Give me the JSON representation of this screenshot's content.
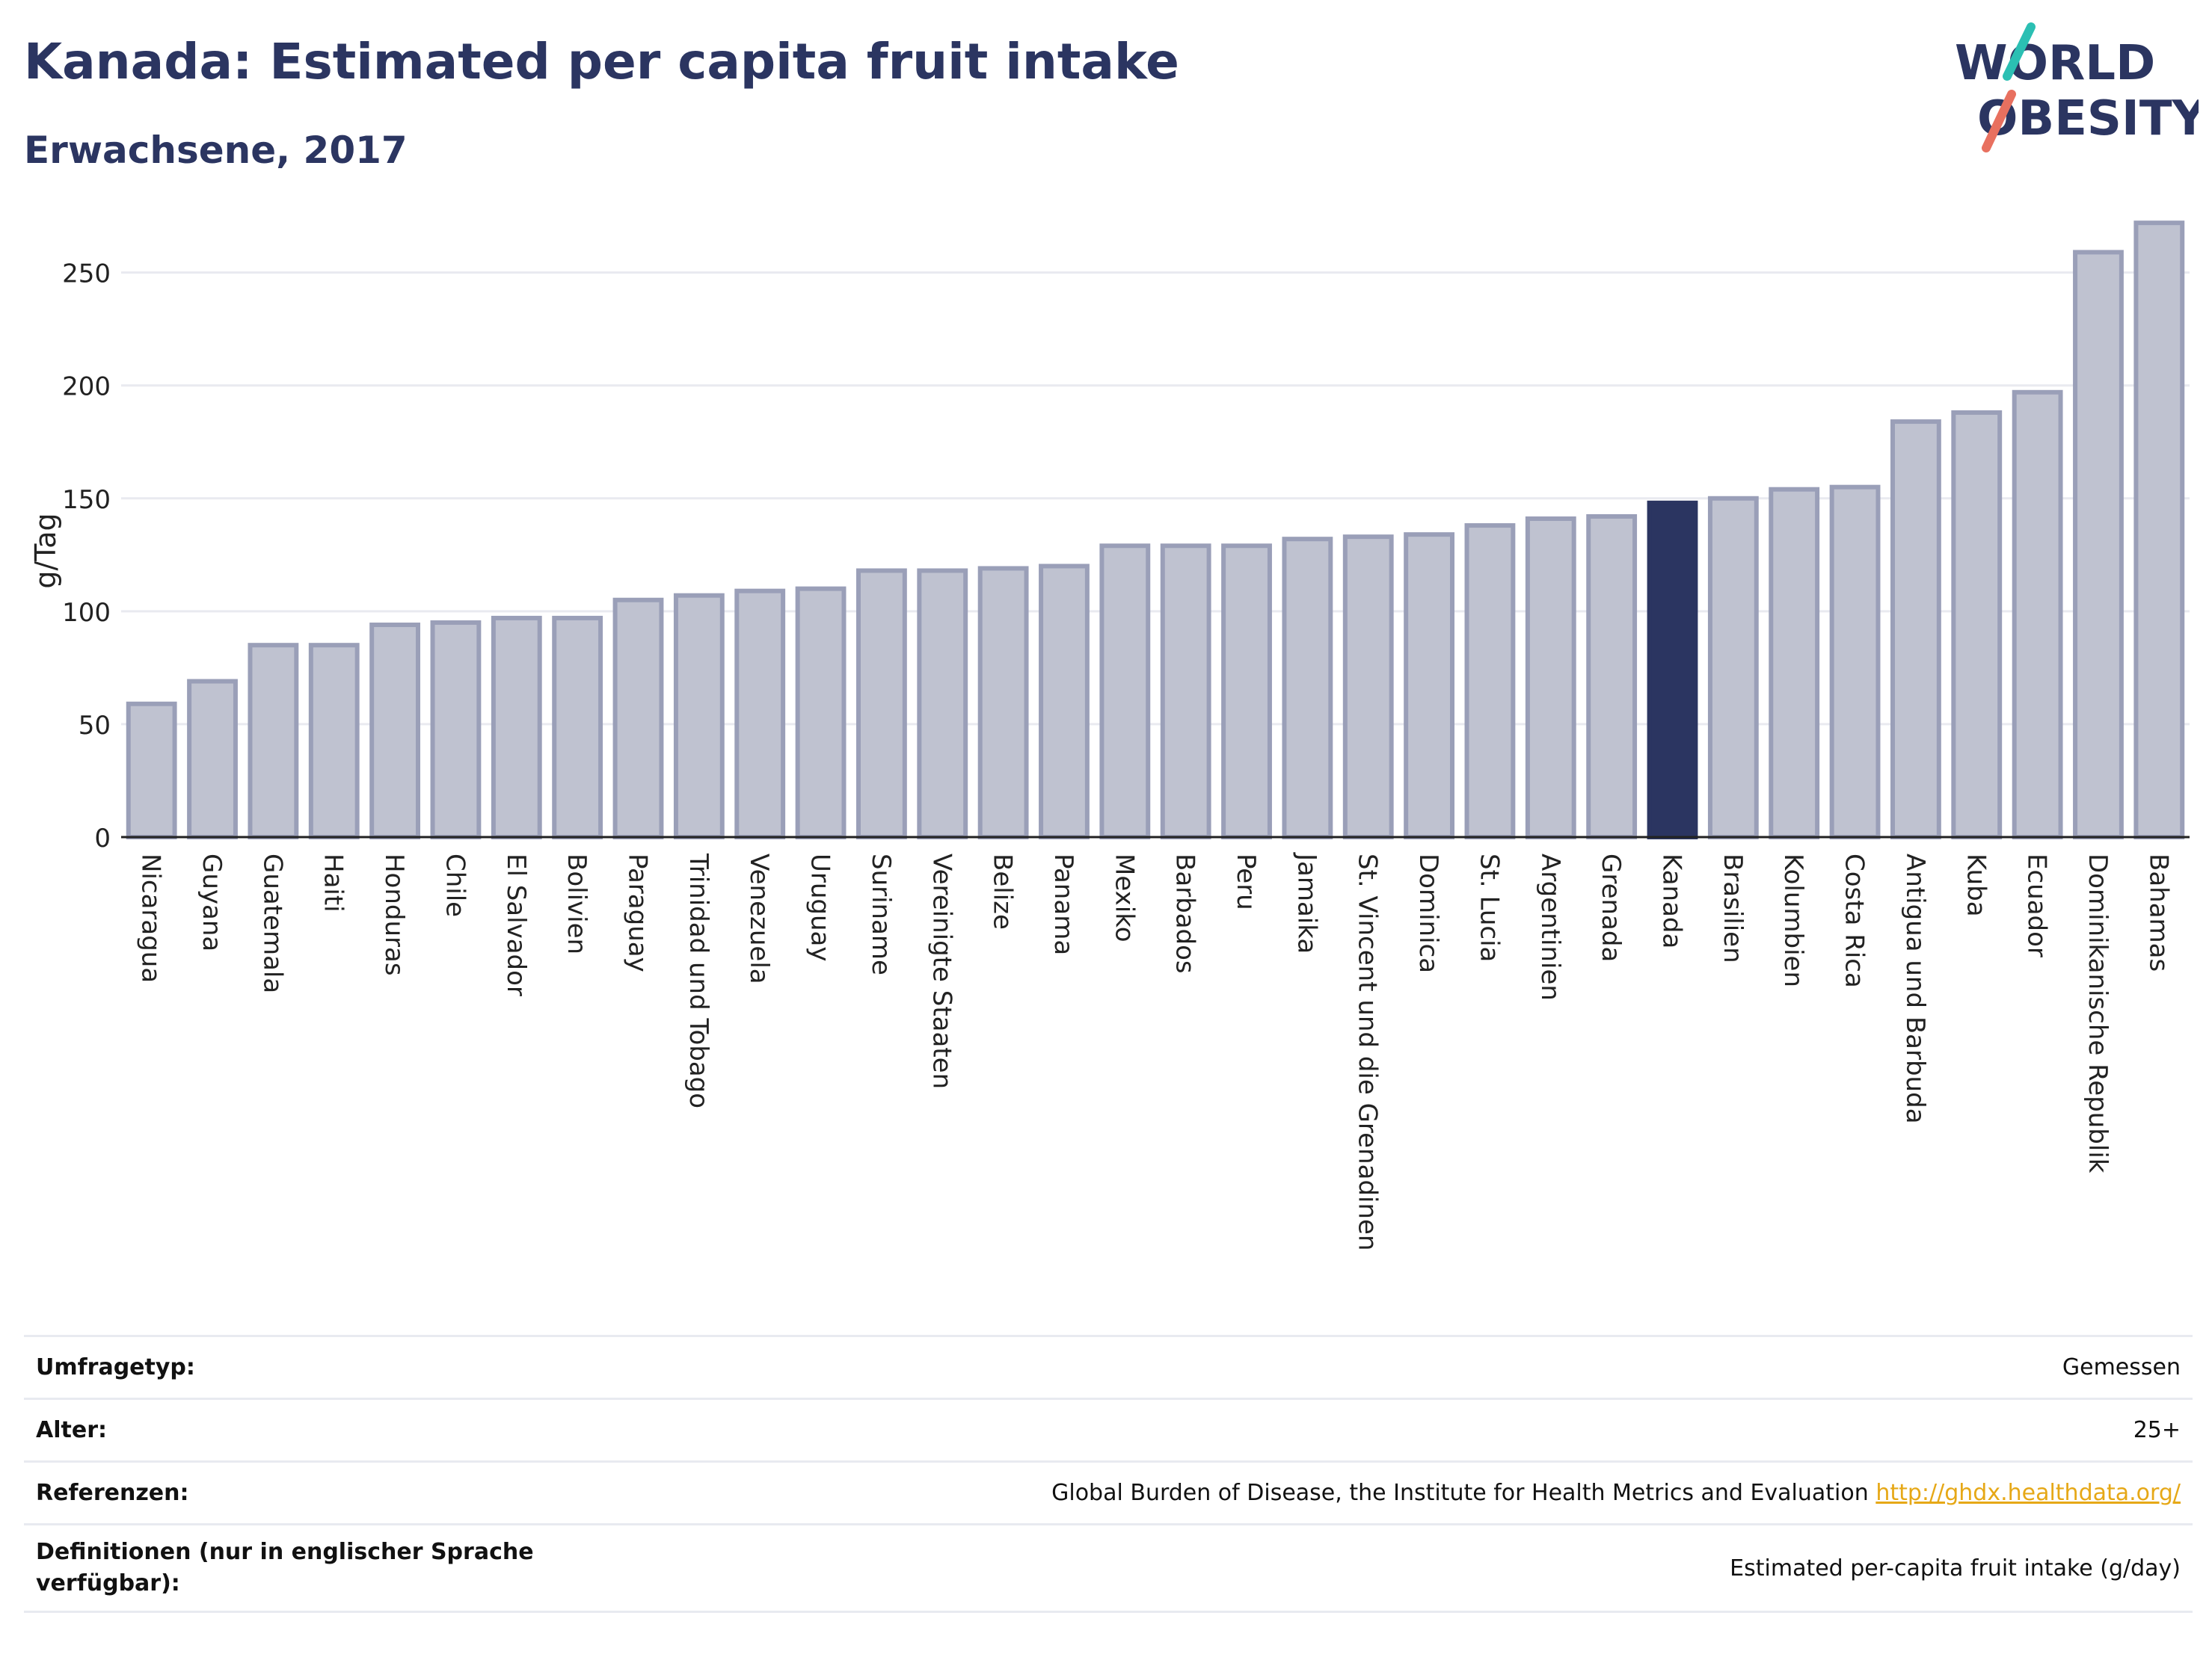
{
  "header": {
    "title": "Kanada: Estimated per capita fruit intake",
    "subtitle": "Erwachsene, 2017"
  },
  "logo": {
    "line1": "WORLD",
    "line2": "OBESITY",
    "accent_teal": "#2bbfb3",
    "accent_coral": "#e8705f"
  },
  "colors": {
    "brand_navy": "#2b3561",
    "bar_fill": "#bfc2d0",
    "bar_edge": "#9a9fb8",
    "highlight": "#2b3561",
    "link": "#e6a817"
  },
  "chart_data": {
    "type": "bar",
    "ylabel": "g/Tag",
    "ylim": [
      0,
      280
    ],
    "yticks": [
      0,
      50,
      100,
      150,
      200,
      250
    ],
    "grid": true,
    "highlight": "Kanada",
    "categories": [
      "Nicaragua",
      "Guyana",
      "Guatemala",
      "Haiti",
      "Honduras",
      "Chile",
      "El Salvador",
      "Bolivien",
      "Paraguay",
      "Trinidad und Tobago",
      "Venezuela",
      "Uruguay",
      "Suriname",
      "Vereinigte Staaten",
      "Belize",
      "Panama",
      "Mexiko",
      "Barbados",
      "Peru",
      "Jamaika",
      "St. Vincent und die Grenadinen",
      "Dominica",
      "St. Lucia",
      "Argentinien",
      "Grenada",
      "Kanada",
      "Brasilien",
      "Kolumbien",
      "Costa Rica",
      "Antigua und Barbuda",
      "Kuba",
      "Ecuador",
      "Dominikanische Republik",
      "Bahamas"
    ],
    "values": [
      59,
      69,
      85,
      85,
      94,
      95,
      97,
      97,
      105,
      107,
      109,
      110,
      118,
      118,
      119,
      120,
      129,
      129,
      129,
      132,
      133,
      134,
      138,
      141,
      142,
      148,
      150,
      154,
      155,
      184,
      188,
      197,
      259,
      272
    ]
  },
  "info_table": [
    {
      "label": "Umfragetyp:",
      "value": "Gemessen"
    },
    {
      "label": "Alter:",
      "value": "25+"
    },
    {
      "label": "Referenzen:",
      "value": "Global Burden of Disease, the Institute for Health Metrics and Evaluation",
      "link": "http://ghdx.healthdata.org/"
    },
    {
      "label": "Definitionen (nur in englischer Sprache verfügbar):",
      "value": "Estimated per-capita fruit intake (g/day)"
    }
  ]
}
